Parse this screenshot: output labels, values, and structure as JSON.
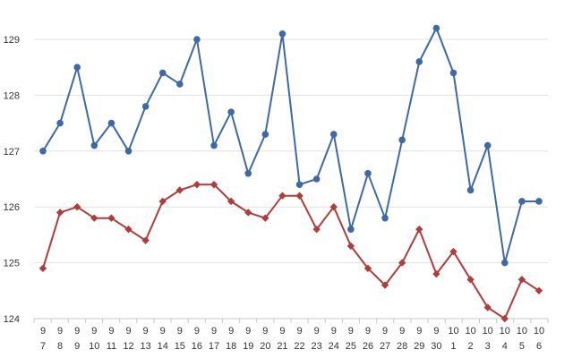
{
  "chart_data": {
    "type": "line",
    "title": "",
    "xlabel": "",
    "ylabel": "",
    "ylim": [
      124,
      129.5
    ],
    "yticks": [
      124,
      125,
      126,
      127,
      128,
      129
    ],
    "grid": true,
    "legend": "none",
    "categories": [
      {
        "month": "9",
        "day": "7"
      },
      {
        "month": "9",
        "day": "8"
      },
      {
        "month": "9",
        "day": "9"
      },
      {
        "month": "9",
        "day": "10"
      },
      {
        "month": "9",
        "day": "11"
      },
      {
        "month": "9",
        "day": "12"
      },
      {
        "month": "9",
        "day": "13"
      },
      {
        "month": "9",
        "day": "14"
      },
      {
        "month": "9",
        "day": "15"
      },
      {
        "month": "9",
        "day": "16"
      },
      {
        "month": "9",
        "day": "17"
      },
      {
        "month": "9",
        "day": "18"
      },
      {
        "month": "9",
        "day": "19"
      },
      {
        "month": "9",
        "day": "20"
      },
      {
        "month": "9",
        "day": "21"
      },
      {
        "month": "9",
        "day": "22"
      },
      {
        "month": "9",
        "day": "23"
      },
      {
        "month": "9",
        "day": "24"
      },
      {
        "month": "9",
        "day": "25"
      },
      {
        "month": "9",
        "day": "26"
      },
      {
        "month": "9",
        "day": "27"
      },
      {
        "month": "9",
        "day": "28"
      },
      {
        "month": "9",
        "day": "29"
      },
      {
        "month": "9",
        "day": "30"
      },
      {
        "month": "10",
        "day": "1"
      },
      {
        "month": "10",
        "day": "2"
      },
      {
        "month": "10",
        "day": "3"
      },
      {
        "month": "10",
        "day": "4"
      },
      {
        "month": "10",
        "day": "5"
      },
      {
        "month": "10",
        "day": "6"
      }
    ],
    "series": [
      {
        "color": "#3d6aa6",
        "marker": "circle",
        "values": [
          127.0,
          127.5,
          128.5,
          127.1,
          127.5,
          127.0,
          127.8,
          128.4,
          128.2,
          129.0,
          127.1,
          127.7,
          126.6,
          127.3,
          129.1,
          126.4,
          126.5,
          127.3,
          125.6,
          126.6,
          125.8,
          127.2,
          128.6,
          129.2,
          128.4,
          126.3,
          127.1,
          125.0,
          126.1,
          126.1
        ]
      },
      {
        "color": "#b23c3a",
        "marker": "diamond",
        "values": [
          124.9,
          125.9,
          126.0,
          125.8,
          125.8,
          125.6,
          125.4,
          126.1,
          126.3,
          126.4,
          126.4,
          126.1,
          125.9,
          125.8,
          126.2,
          126.2,
          125.6,
          126.0,
          125.3,
          124.9,
          124.6,
          125.0,
          125.6,
          124.8,
          125.2,
          124.7,
          124.2,
          124.0,
          124.7,
          124.5
        ]
      }
    ]
  }
}
